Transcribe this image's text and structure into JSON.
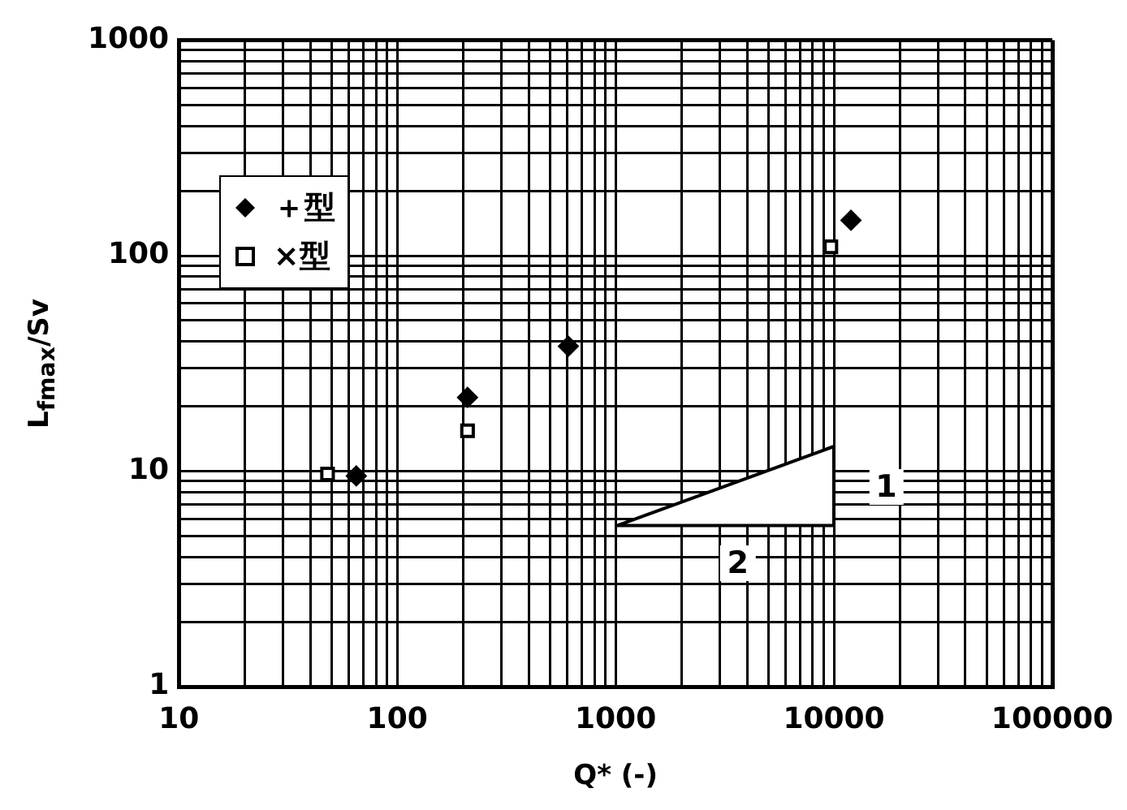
{
  "chart_data": {
    "type": "scatter",
    "xlabel": "Q* (-)",
    "ylabel": "L$_{fmax}$/Sv",
    "log": "xy",
    "grid": true,
    "legend": "top left",
    "xlim": [
      10,
      100000
    ],
    "xticks": [
      10,
      100,
      1000,
      10000,
      100000
    ],
    "ylim": [
      1,
      1000
    ],
    "yticks": [
      1,
      10,
      100,
      1000
    ],
    "series": [
      {
        "name": "＋型",
        "color": "#000000",
        "marker": "diamond",
        "x": [
          65,
          210,
          608,
          11970
        ],
        "values": [
          9.5,
          22,
          38,
          146
        ]
      },
      {
        "name": "×型",
        "color": "#000000",
        "marker": "square",
        "x": [
          48,
          210,
          9680
        ],
        "values": [
          9.7,
          15.4,
          110
        ]
      }
    ],
    "annotations": [
      "1",
      "2"
    ]
  }
}
